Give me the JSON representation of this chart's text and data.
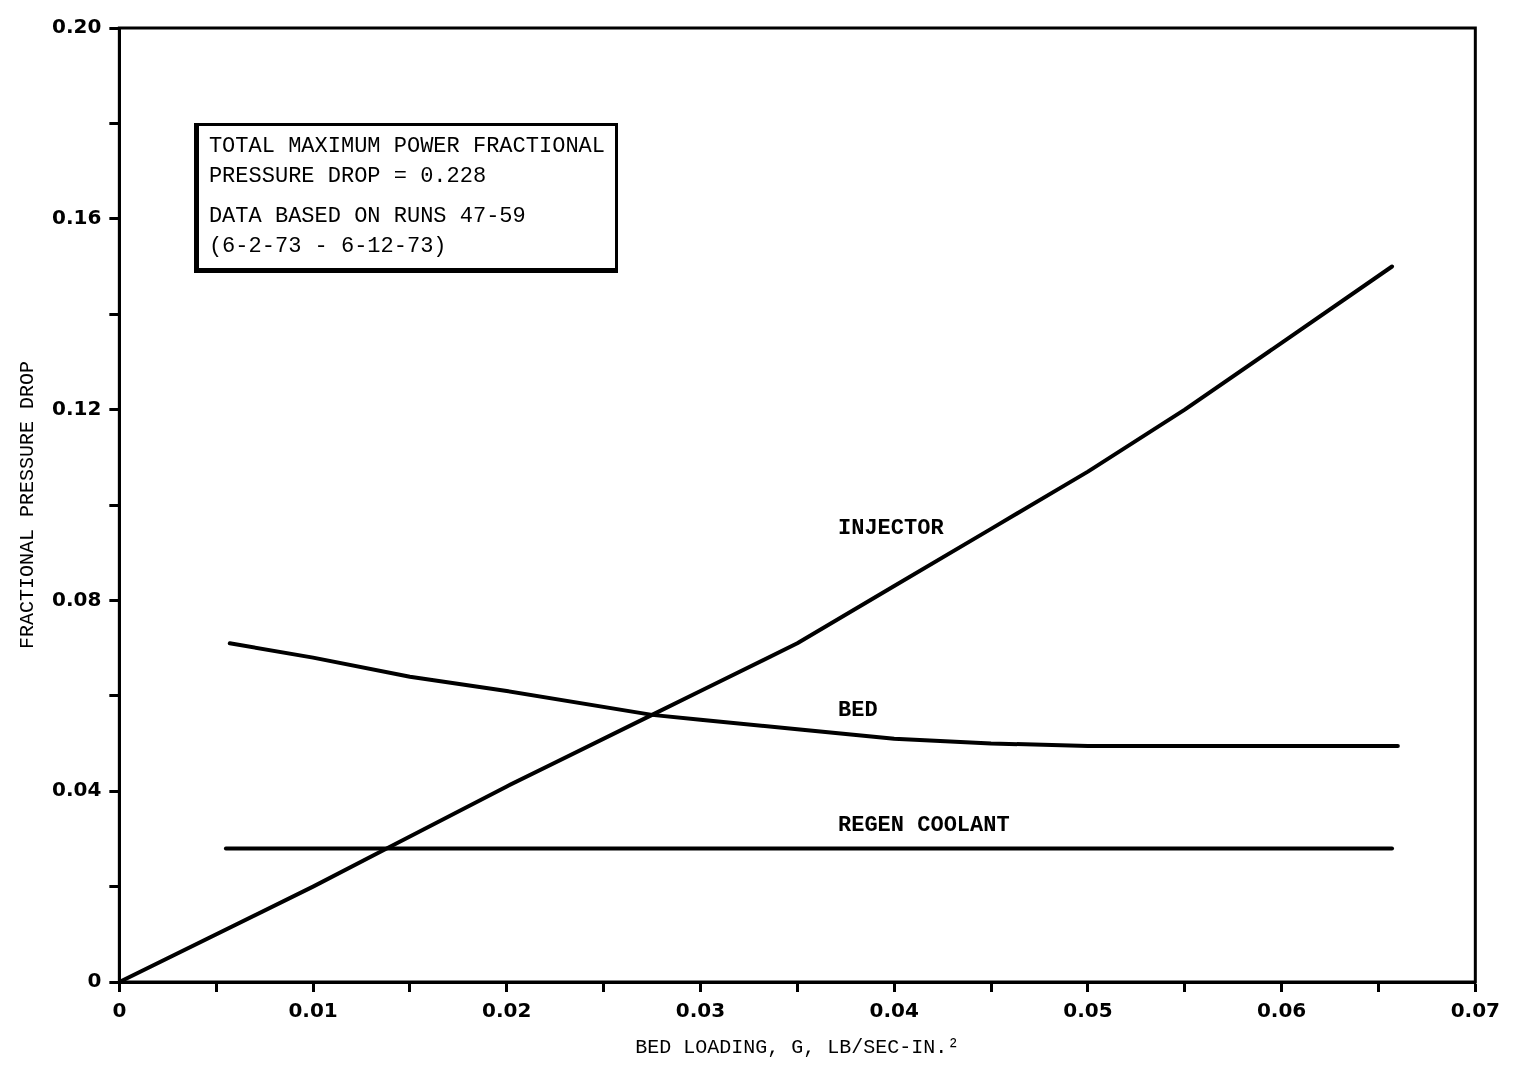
{
  "chart_data": {
    "type": "line",
    "xlabel": "BED LOADING, G, LB/SEC-IN.²",
    "ylabel": "FRACTIONAL PRESSURE DROP",
    "xlim": [
      0,
      0.07
    ],
    "xticks": [
      0,
      {
        "value": 0.005,
        "label": null
      },
      0.01,
      {
        "value": 0.015,
        "label": null
      },
      0.02,
      {
        "value": 0.025,
        "label": null
      },
      0.03,
      {
        "value": 0.035,
        "label": null
      },
      0.04,
      {
        "value": 0.045,
        "label": null
      },
      0.05,
      {
        "value": 0.055,
        "label": null
      },
      0.06,
      {
        "value": 0.065,
        "label": null
      },
      0.07
    ],
    "ylim": [
      0,
      0.2
    ],
    "yticks": [
      0,
      {
        "value": 0.02,
        "label": null
      },
      0.04,
      {
        "value": 0.06,
        "label": null
      },
      0.08,
      {
        "value": 0.1,
        "label": null
      },
      0.12,
      {
        "value": 0.14,
        "label": null
      },
      0.16,
      {
        "value": 0.18,
        "label": null
      },
      {
        "value": 0.2,
        "label": "0.20"
      }
    ],
    "grid": false,
    "series": [
      {
        "name": "INJECTOR",
        "color": "#000000",
        "x": [
          0,
          0.01,
          0.0138,
          0.02,
          0.0275,
          0.03,
          0.035,
          0.04,
          0.045,
          0.05,
          0.055,
          0.06,
          0.0657
        ],
        "values": [
          0,
          0.02,
          0.028,
          0.041,
          0.056,
          0.061,
          0.071,
          0.083,
          0.095,
          0.107,
          0.12,
          0.134,
          0.15
        ]
      },
      {
        "name": "BED",
        "color": "#000000",
        "x": [
          0.0057,
          0.01,
          0.015,
          0.02,
          0.0275,
          0.03,
          0.035,
          0.04,
          0.045,
          0.05,
          0.055,
          0.06,
          0.066
        ],
        "values": [
          0.071,
          0.068,
          0.064,
          0.061,
          0.056,
          0.055,
          0.053,
          0.051,
          0.05,
          0.0495,
          0.0495,
          0.0495,
          0.0495
        ]
      },
      {
        "name": "REGEN COOLANT",
        "color": "#000000",
        "x": [
          0.0055,
          0.0657
        ],
        "values": [
          0.028,
          0.028
        ]
      }
    ],
    "annotations": [
      "TOTAL MAXIMUM POWER FRACTIONAL\nPRESSURE DROP = 0.228",
      "DATA BASED ON RUNS 47-59\n(6-2-73 - 6-12-73)"
    ]
  }
}
